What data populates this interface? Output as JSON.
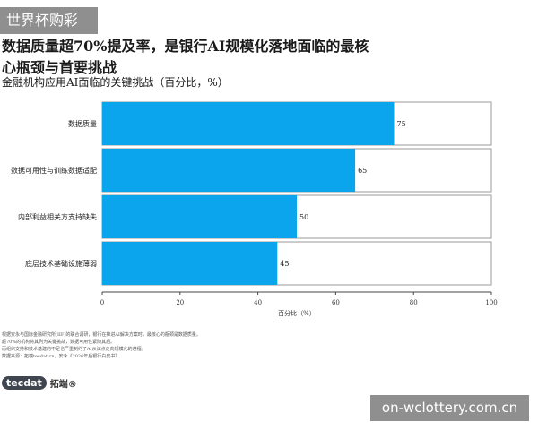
{
  "watermark_top": "世界杯购彩",
  "watermark_bottom": "on-wclottery.com.cn",
  "chart_data": {
    "type": "bar",
    "orientation": "horizontal",
    "title": "数据质量超70%提及率，是银行AI规模化落地面临的最核心瓶颈与首要挑战",
    "subtitle": "金融机构应用AI面临的关键挑战（百分比，%）",
    "categories": [
      "数据质量",
      "数据可用性与训练数据适配",
      "内部利益相关方支持缺失",
      "底层技术基础设施薄弱"
    ],
    "values": [
      75,
      65,
      50,
      45
    ],
    "value_labels": [
      "75",
      "65",
      "50",
      "45"
    ],
    "xlabel": "百分比（%）",
    "xlim": [
      0,
      100
    ],
    "xticks": [
      "0",
      "20",
      "40",
      "60",
      "80",
      "100"
    ],
    "bar_color": "#0aa5ec",
    "track_color": "#ffffff",
    "track_border": "#9a9a9a",
    "grid": false
  },
  "footnotes": [
    "根据安永与国际金融研究所(IIF)的联合调研，银行在推进AI解决方案时，最核心的瓶颈是数据质量。",
    "超70%的机构将其列为关键挑战，数据可用性紧随其后。",
    "而组织支持和技术基建的不足也严重制约了AI从试点走向规模化的进程。",
    "数据来源：拓端tecdat.cn，安永《2026年后银行白皮书》"
  ],
  "brand": {
    "logo": "tecdat",
    "name": "拓端®"
  }
}
